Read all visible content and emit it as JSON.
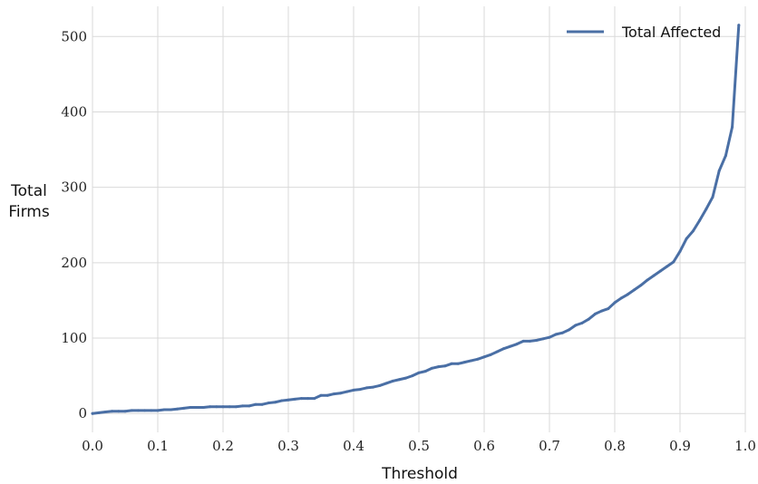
{
  "chart_data": {
    "type": "line",
    "title": "",
    "xlabel": "Threshold",
    "ylabel_lines": [
      "Total",
      "Firms"
    ],
    "xlim": [
      0.0,
      1.0
    ],
    "ylim": [
      -25,
      540
    ],
    "x_ticks": [
      "0.0",
      "0.1",
      "0.2",
      "0.3",
      "0.4",
      "0.5",
      "0.6",
      "0.7",
      "0.8",
      "0.9",
      "1.0"
    ],
    "y_ticks": [
      "0",
      "100",
      "200",
      "300",
      "400",
      "500"
    ],
    "grid": true,
    "legend_position": "top-right",
    "series": [
      {
        "name": "Total Affected",
        "color": "#4a6fa5",
        "x": [
          0.0,
          0.01,
          0.02,
          0.03,
          0.04,
          0.05,
          0.06,
          0.07,
          0.08,
          0.09,
          0.1,
          0.11,
          0.12,
          0.13,
          0.14,
          0.15,
          0.16,
          0.17,
          0.18,
          0.19,
          0.2,
          0.21,
          0.22,
          0.23,
          0.24,
          0.25,
          0.26,
          0.27,
          0.28,
          0.29,
          0.3,
          0.31,
          0.32,
          0.33,
          0.34,
          0.35,
          0.36,
          0.37,
          0.38,
          0.39,
          0.4,
          0.41,
          0.42,
          0.43,
          0.44,
          0.45,
          0.46,
          0.47,
          0.48,
          0.49,
          0.5,
          0.51,
          0.52,
          0.53,
          0.54,
          0.55,
          0.56,
          0.57,
          0.58,
          0.59,
          0.6,
          0.61,
          0.62,
          0.63,
          0.64,
          0.65,
          0.66,
          0.67,
          0.68,
          0.69,
          0.7,
          0.71,
          0.72,
          0.73,
          0.74,
          0.75,
          0.76,
          0.77,
          0.78,
          0.79,
          0.8,
          0.81,
          0.82,
          0.83,
          0.84,
          0.85,
          0.86,
          0.87,
          0.88,
          0.89,
          0.9,
          0.91,
          0.92,
          0.93,
          0.94,
          0.95,
          0.96,
          0.97,
          0.98,
          0.99
        ],
        "values": [
          0,
          1,
          2,
          3,
          3,
          3,
          4,
          4,
          4,
          4,
          4,
          5,
          5,
          6,
          7,
          8,
          8,
          8,
          9,
          9,
          9,
          9,
          9,
          10,
          10,
          12,
          12,
          14,
          15,
          17,
          18,
          19,
          20,
          20,
          20,
          24,
          24,
          26,
          27,
          29,
          31,
          32,
          34,
          35,
          37,
          40,
          43,
          45,
          47,
          50,
          54,
          56,
          60,
          62,
          63,
          66,
          66,
          68,
          70,
          72,
          75,
          78,
          82,
          86,
          89,
          92,
          96,
          96,
          97,
          99,
          101,
          105,
          107,
          111,
          117,
          120,
          125,
          132,
          136,
          139,
          147,
          153,
          158,
          164,
          170,
          177,
          183,
          189,
          195,
          201,
          215,
          232,
          242,
          256,
          271,
          287,
          322,
          342,
          380,
          515
        ]
      }
    ]
  }
}
